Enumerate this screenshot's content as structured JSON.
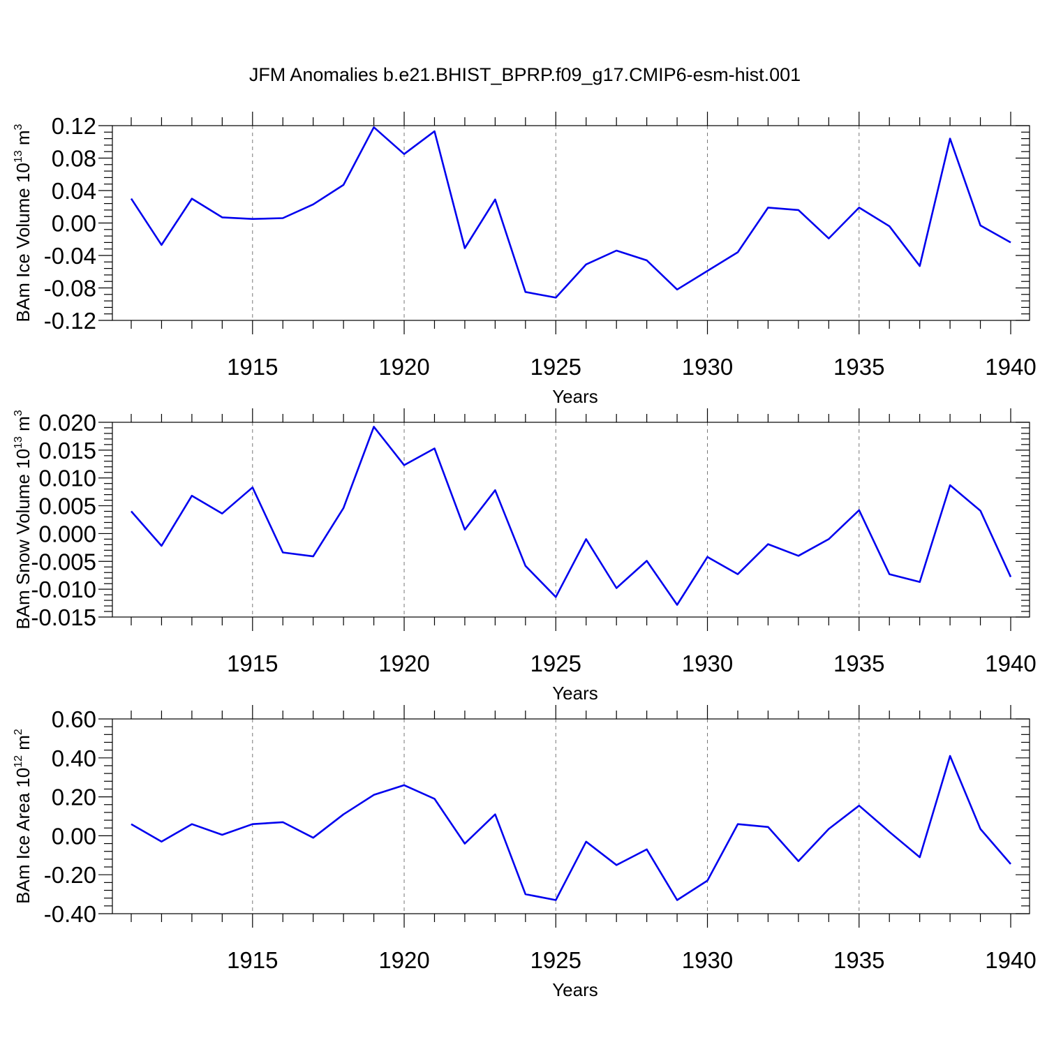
{
  "figure": {
    "title": "JFM Anomalies b.e21.BHIST_BPRP.f09_g17.CMIP6-esm-hist.001"
  },
  "colors": {
    "line": "#0000ee",
    "axes": "#000000",
    "grid": "#777777"
  },
  "chart_data": [
    {
      "type": "line",
      "ylabel_main": "BAm Ice Volume 10",
      "ylabel_exp": "13",
      "ylabel_unit": " m",
      "ylabel_unit_exp": "3",
      "xlabel": "Years",
      "xlim": [
        1911,
        1940
      ],
      "ylim": [
        -0.12,
        0.12
      ],
      "yticks": [
        -0.12,
        -0.08,
        -0.04,
        0.0,
        0.04,
        0.08,
        0.12
      ],
      "ytick_labels": [
        "-0.12",
        "-0.08",
        "-0.04",
        "0.00",
        "0.04",
        "0.08",
        "0.12"
      ],
      "xticks": [
        1915,
        1920,
        1925,
        1930,
        1935,
        1940
      ],
      "xtick_labels": [
        "1915",
        "1920",
        "1925",
        "1930",
        "1935",
        "1940"
      ],
      "grid": "vertical dashed at labeled years",
      "x": [
        1911,
        1912,
        1913,
        1914,
        1915,
        1916,
        1917,
        1918,
        1919,
        1920,
        1921,
        1922,
        1923,
        1924,
        1925,
        1926,
        1927,
        1928,
        1929,
        1930,
        1931,
        1932,
        1933,
        1934,
        1935,
        1936,
        1937,
        1938,
        1939,
        1940
      ],
      "values": [
        0.03,
        -0.027,
        0.03,
        0.007,
        0.005,
        0.006,
        0.023,
        0.047,
        0.118,
        0.085,
        0.113,
        -0.031,
        0.029,
        -0.085,
        -0.092,
        -0.051,
        -0.034,
        -0.046,
        -0.082,
        -0.059,
        -0.036,
        0.019,
        0.016,
        -0.019,
        0.019,
        -0.004,
        -0.053,
        0.104,
        -0.003,
        -0.024
      ]
    },
    {
      "type": "line",
      "ylabel_main": "BAm Snow Volume 10",
      "ylabel_exp": "13",
      "ylabel_unit": " m",
      "ylabel_unit_exp": "3",
      "xlabel": "Years",
      "xlim": [
        1911,
        1940
      ],
      "ylim": [
        -0.015,
        0.02
      ],
      "yticks": [
        -0.015,
        -0.01,
        -0.005,
        0.0,
        0.005,
        0.01,
        0.015,
        0.02
      ],
      "ytick_labels": [
        "-0.015",
        "-0.010",
        "-0.005",
        "0.000",
        "0.005",
        "0.010",
        "0.015",
        "0.020"
      ],
      "xticks": [
        1915,
        1920,
        1925,
        1930,
        1935,
        1940
      ],
      "xtick_labels": [
        "1915",
        "1920",
        "1925",
        "1930",
        "1935",
        "1940"
      ],
      "grid": "vertical dashed at labeled years",
      "x": [
        1911,
        1912,
        1913,
        1914,
        1915,
        1916,
        1917,
        1918,
        1919,
        1920,
        1921,
        1922,
        1923,
        1924,
        1925,
        1926,
        1927,
        1928,
        1929,
        1930,
        1931,
        1932,
        1933,
        1934,
        1935,
        1936,
        1937,
        1938,
        1939,
        1940
      ],
      "values": [
        0.004,
        -0.0022,
        0.0068,
        0.0036,
        0.0083,
        -0.0034,
        -0.0041,
        0.0046,
        0.0192,
        0.0123,
        0.0153,
        0.0007,
        0.0078,
        -0.0058,
        -0.0114,
        -0.001,
        -0.0098,
        -0.0049,
        -0.0128,
        -0.0042,
        -0.0073,
        -0.0019,
        -0.004,
        -0.001,
        0.0042,
        -0.0073,
        -0.0087,
        0.0087,
        0.0041,
        -0.0078
      ]
    },
    {
      "type": "line",
      "ylabel_main": "BAm Ice Area 10",
      "ylabel_exp": "12",
      "ylabel_unit": " m",
      "ylabel_unit_exp": "2",
      "xlabel": "Years",
      "xlim": [
        1911,
        1940
      ],
      "ylim": [
        -0.4,
        0.6
      ],
      "yticks": [
        -0.4,
        -0.2,
        0.0,
        0.2,
        0.4,
        0.6
      ],
      "ytick_labels": [
        "-0.40",
        "-0.20",
        "0.00",
        "0.20",
        "0.40",
        "0.60"
      ],
      "xticks": [
        1915,
        1920,
        1925,
        1930,
        1935,
        1940
      ],
      "xtick_labels": [
        "1915",
        "1920",
        "1925",
        "1930",
        "1935",
        "1940"
      ],
      "grid": "vertical dashed at labeled years",
      "x": [
        1911,
        1912,
        1913,
        1914,
        1915,
        1916,
        1917,
        1918,
        1919,
        1920,
        1921,
        1922,
        1923,
        1924,
        1925,
        1926,
        1927,
        1928,
        1929,
        1930,
        1931,
        1932,
        1933,
        1934,
        1935,
        1936,
        1937,
        1938,
        1939,
        1940
      ],
      "values": [
        0.06,
        -0.03,
        0.06,
        0.005,
        0.06,
        0.07,
        -0.01,
        0.11,
        0.21,
        0.26,
        0.19,
        -0.04,
        0.11,
        -0.3,
        -0.33,
        -0.03,
        -0.15,
        -0.07,
        -0.33,
        -0.23,
        0.06,
        0.045,
        -0.13,
        0.035,
        0.155,
        0.02,
        -0.11,
        0.41,
        0.035,
        -0.145
      ]
    }
  ]
}
